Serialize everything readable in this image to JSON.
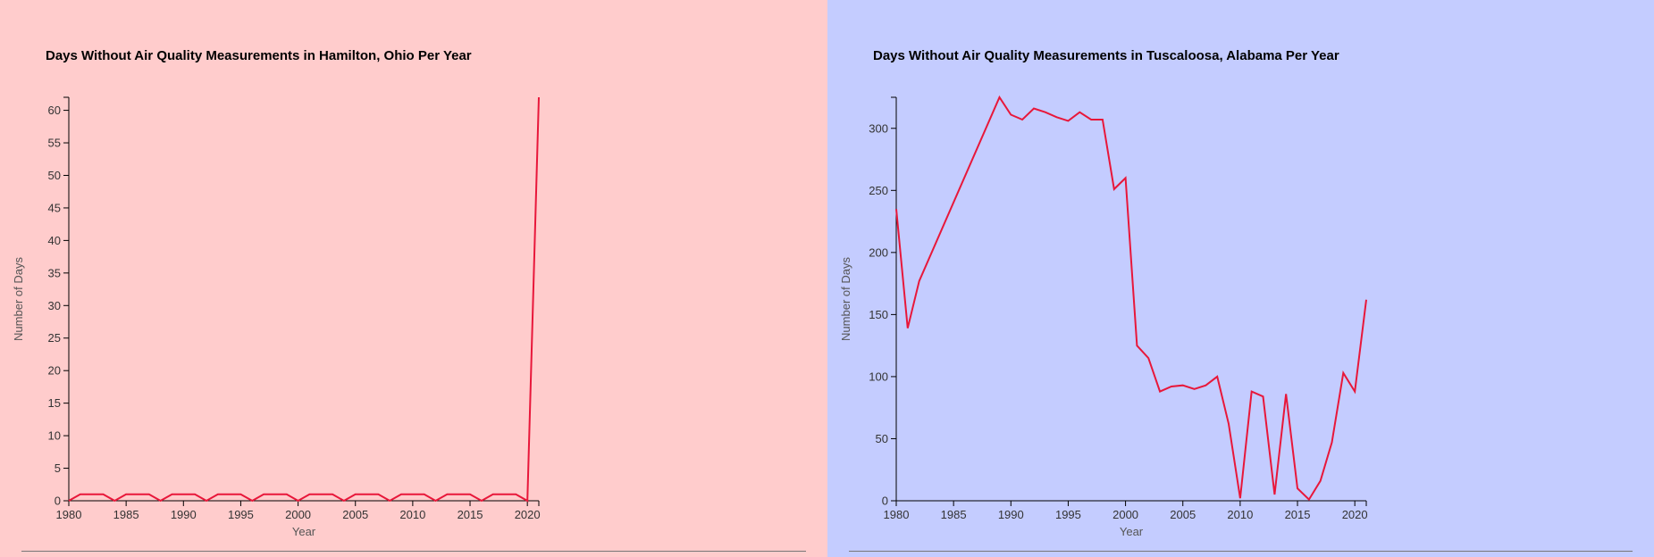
{
  "chart_data": [
    {
      "type": "line",
      "title": "Days Without Air Quality Measurements in Hamilton, Ohio Per Year",
      "xlabel": "Year",
      "ylabel": "Number of Days",
      "xlim": [
        1980,
        2021
      ],
      "ylim": [
        0,
        62
      ],
      "xticks": [
        1980,
        1985,
        1990,
        1995,
        2000,
        2005,
        2010,
        2015,
        2020
      ],
      "yticks": [
        0,
        5,
        10,
        15,
        20,
        25,
        30,
        35,
        40,
        45,
        50,
        55,
        60
      ],
      "grid": false,
      "legend": "none",
      "background": "#ffcccc",
      "line_color": "#e8173a",
      "x": [
        1980,
        1981,
        1982,
        1983,
        1984,
        1985,
        1986,
        1987,
        1988,
        1989,
        1990,
        1991,
        1992,
        1993,
        1994,
        1995,
        1996,
        1997,
        1998,
        1999,
        2000,
        2001,
        2002,
        2003,
        2004,
        2005,
        2006,
        2007,
        2008,
        2009,
        2010,
        2011,
        2012,
        2013,
        2014,
        2015,
        2016,
        2017,
        2018,
        2019,
        2020,
        2021
      ],
      "y": [
        0,
        1,
        1,
        1,
        0,
        1,
        1,
        1,
        0,
        1,
        1,
        1,
        0,
        1,
        1,
        1,
        0,
        1,
        1,
        1,
        0,
        1,
        1,
        1,
        0,
        1,
        1,
        1,
        0,
        1,
        1,
        1,
        0,
        1,
        1,
        1,
        0,
        1,
        1,
        1,
        0,
        62
      ]
    },
    {
      "type": "line",
      "title": "Days Without Air Quality Measurements in Tuscaloosa, Alabama Per Year",
      "xlabel": "Year",
      "ylabel": "Number of Days",
      "xlim": [
        1980,
        2021
      ],
      "ylim": [
        0,
        325
      ],
      "xticks": [
        1980,
        1985,
        1990,
        1995,
        2000,
        2005,
        2010,
        2015,
        2020
      ],
      "yticks": [
        0,
        50,
        100,
        150,
        200,
        250,
        300
      ],
      "grid": false,
      "legend": "none",
      "background": "#c4ccff",
      "line_color": "#e8173a",
      "x": [
        1980,
        1981,
        1982,
        1989,
        1990,
        1991,
        1992,
        1993,
        1994,
        1995,
        1996,
        1997,
        1998,
        1999,
        2000,
        2001,
        2002,
        2003,
        2004,
        2005,
        2006,
        2007,
        2008,
        2009,
        2010,
        2011,
        2012,
        2013,
        2014,
        2015,
        2016,
        2017,
        2018,
        2019,
        2020,
        2021
      ],
      "y": [
        235,
        139,
        177,
        325,
        311,
        307,
        316,
        313,
        309,
        306,
        313,
        307,
        307,
        251,
        260,
        125,
        115,
        88,
        92,
        93,
        90,
        93,
        100,
        62,
        2,
        88,
        84,
        5,
        86,
        10,
        1,
        16,
        47,
        103,
        88,
        162
      ]
    }
  ]
}
